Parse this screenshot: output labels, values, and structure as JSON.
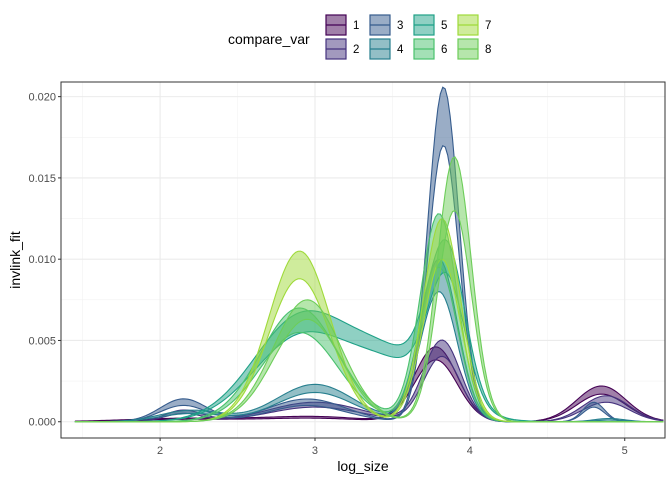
{
  "chart_data": {
    "type": "area",
    "description": "ribbon",
    "xlabel": "log_size",
    "ylabel": "invlink_fit",
    "xlim": [
      1.36,
      5.26
    ],
    "ylim": [
      -0.001,
      0.0209
    ],
    "x_ticks": [
      "2",
      "3",
      "4",
      "5"
    ],
    "y_ticks": [
      "0.000",
      "0.005",
      "0.010",
      "0.015",
      "0.020"
    ],
    "grid": true,
    "legend": {
      "title": "compare_var",
      "position": "top",
      "entries": [
        "1",
        "2",
        "3",
        "4",
        "5",
        "6",
        "7",
        "8"
      ]
    },
    "colors": [
      "#440154",
      "#46337E",
      "#365C8D",
      "#277F8E",
      "#1FA187",
      "#4AC16D",
      "#9FDA3A",
      "#6DCD59"
    ],
    "series": [
      {
        "name": "1",
        "peaks": [
          {
            "mu": 2.2,
            "sd": 0.4,
            "lo": 0.00015,
            "hi": 0.00022
          },
          {
            "mu": 3.0,
            "sd": 0.3,
            "lo": 0.0002,
            "hi": 0.0003
          },
          {
            "mu": 3.78,
            "sd": 0.14,
            "lo": 0.0038,
            "hi": 0.0046
          },
          {
            "mu": 4.85,
            "sd": 0.16,
            "lo": 0.0017,
            "hi": 0.0022
          }
        ]
      },
      {
        "name": "2",
        "peaks": [
          {
            "mu": 2.15,
            "sd": 0.12,
            "lo": 0.0005,
            "hi": 0.0007
          },
          {
            "mu": 3.0,
            "sd": 0.3,
            "lo": 0.0009,
            "hi": 0.0012
          },
          {
            "mu": 3.82,
            "sd": 0.12,
            "lo": 0.004,
            "hi": 0.005
          },
          {
            "mu": 4.88,
            "sd": 0.15,
            "lo": 0.0012,
            "hi": 0.0016
          }
        ]
      },
      {
        "name": "3",
        "peaks": [
          {
            "mu": 2.15,
            "sd": 0.15,
            "lo": 0.001,
            "hi": 0.0014
          },
          {
            "mu": 2.95,
            "sd": 0.25,
            "lo": 0.001,
            "hi": 0.0014
          },
          {
            "mu": 3.83,
            "sd": 0.1,
            "lo": 0.017,
            "hi": 0.0206
          },
          {
            "mu": 4.8,
            "sd": 0.07,
            "lo": 0.0009,
            "hi": 0.0012
          }
        ]
      },
      {
        "name": "4",
        "peaks": [
          {
            "mu": 2.2,
            "sd": 0.2,
            "lo": 0.0005,
            "hi": 0.0007
          },
          {
            "mu": 3.0,
            "sd": 0.25,
            "lo": 0.0018,
            "hi": 0.0023
          },
          {
            "mu": 3.8,
            "sd": 0.12,
            "lo": 0.008,
            "hi": 0.01
          },
          {
            "mu": 4.9,
            "sd": 0.1,
            "lo": 0.0001,
            "hi": 0.0002
          }
        ]
      },
      {
        "name": "5",
        "peaks": [
          {
            "mu": 2.9,
            "sd": 0.3,
            "lo": 0.005,
            "hi": 0.0062
          },
          {
            "mu": 3.5,
            "sd": 0.3,
            "lo": 0.0032,
            "hi": 0.0038
          },
          {
            "mu": 3.85,
            "sd": 0.12,
            "lo": 0.0075,
            "hi": 0.0092
          }
        ]
      },
      {
        "name": "6",
        "peaks": [
          {
            "mu": 2.9,
            "sd": 0.25,
            "lo": 0.0055,
            "hi": 0.007
          },
          {
            "mu": 3.8,
            "sd": 0.12,
            "lo": 0.0095,
            "hi": 0.0128
          }
        ]
      },
      {
        "name": "7",
        "peaks": [
          {
            "mu": 2.9,
            "sd": 0.2,
            "lo": 0.0088,
            "hi": 0.0105
          },
          {
            "mu": 3.82,
            "sd": 0.12,
            "lo": 0.01,
            "hi": 0.0125
          }
        ]
      },
      {
        "name": "8",
        "peaks": [
          {
            "mu": 2.95,
            "sd": 0.22,
            "lo": 0.0063,
            "hi": 0.0075
          },
          {
            "mu": 3.9,
            "sd": 0.11,
            "lo": 0.013,
            "hi": 0.0163
          }
        ]
      }
    ]
  }
}
